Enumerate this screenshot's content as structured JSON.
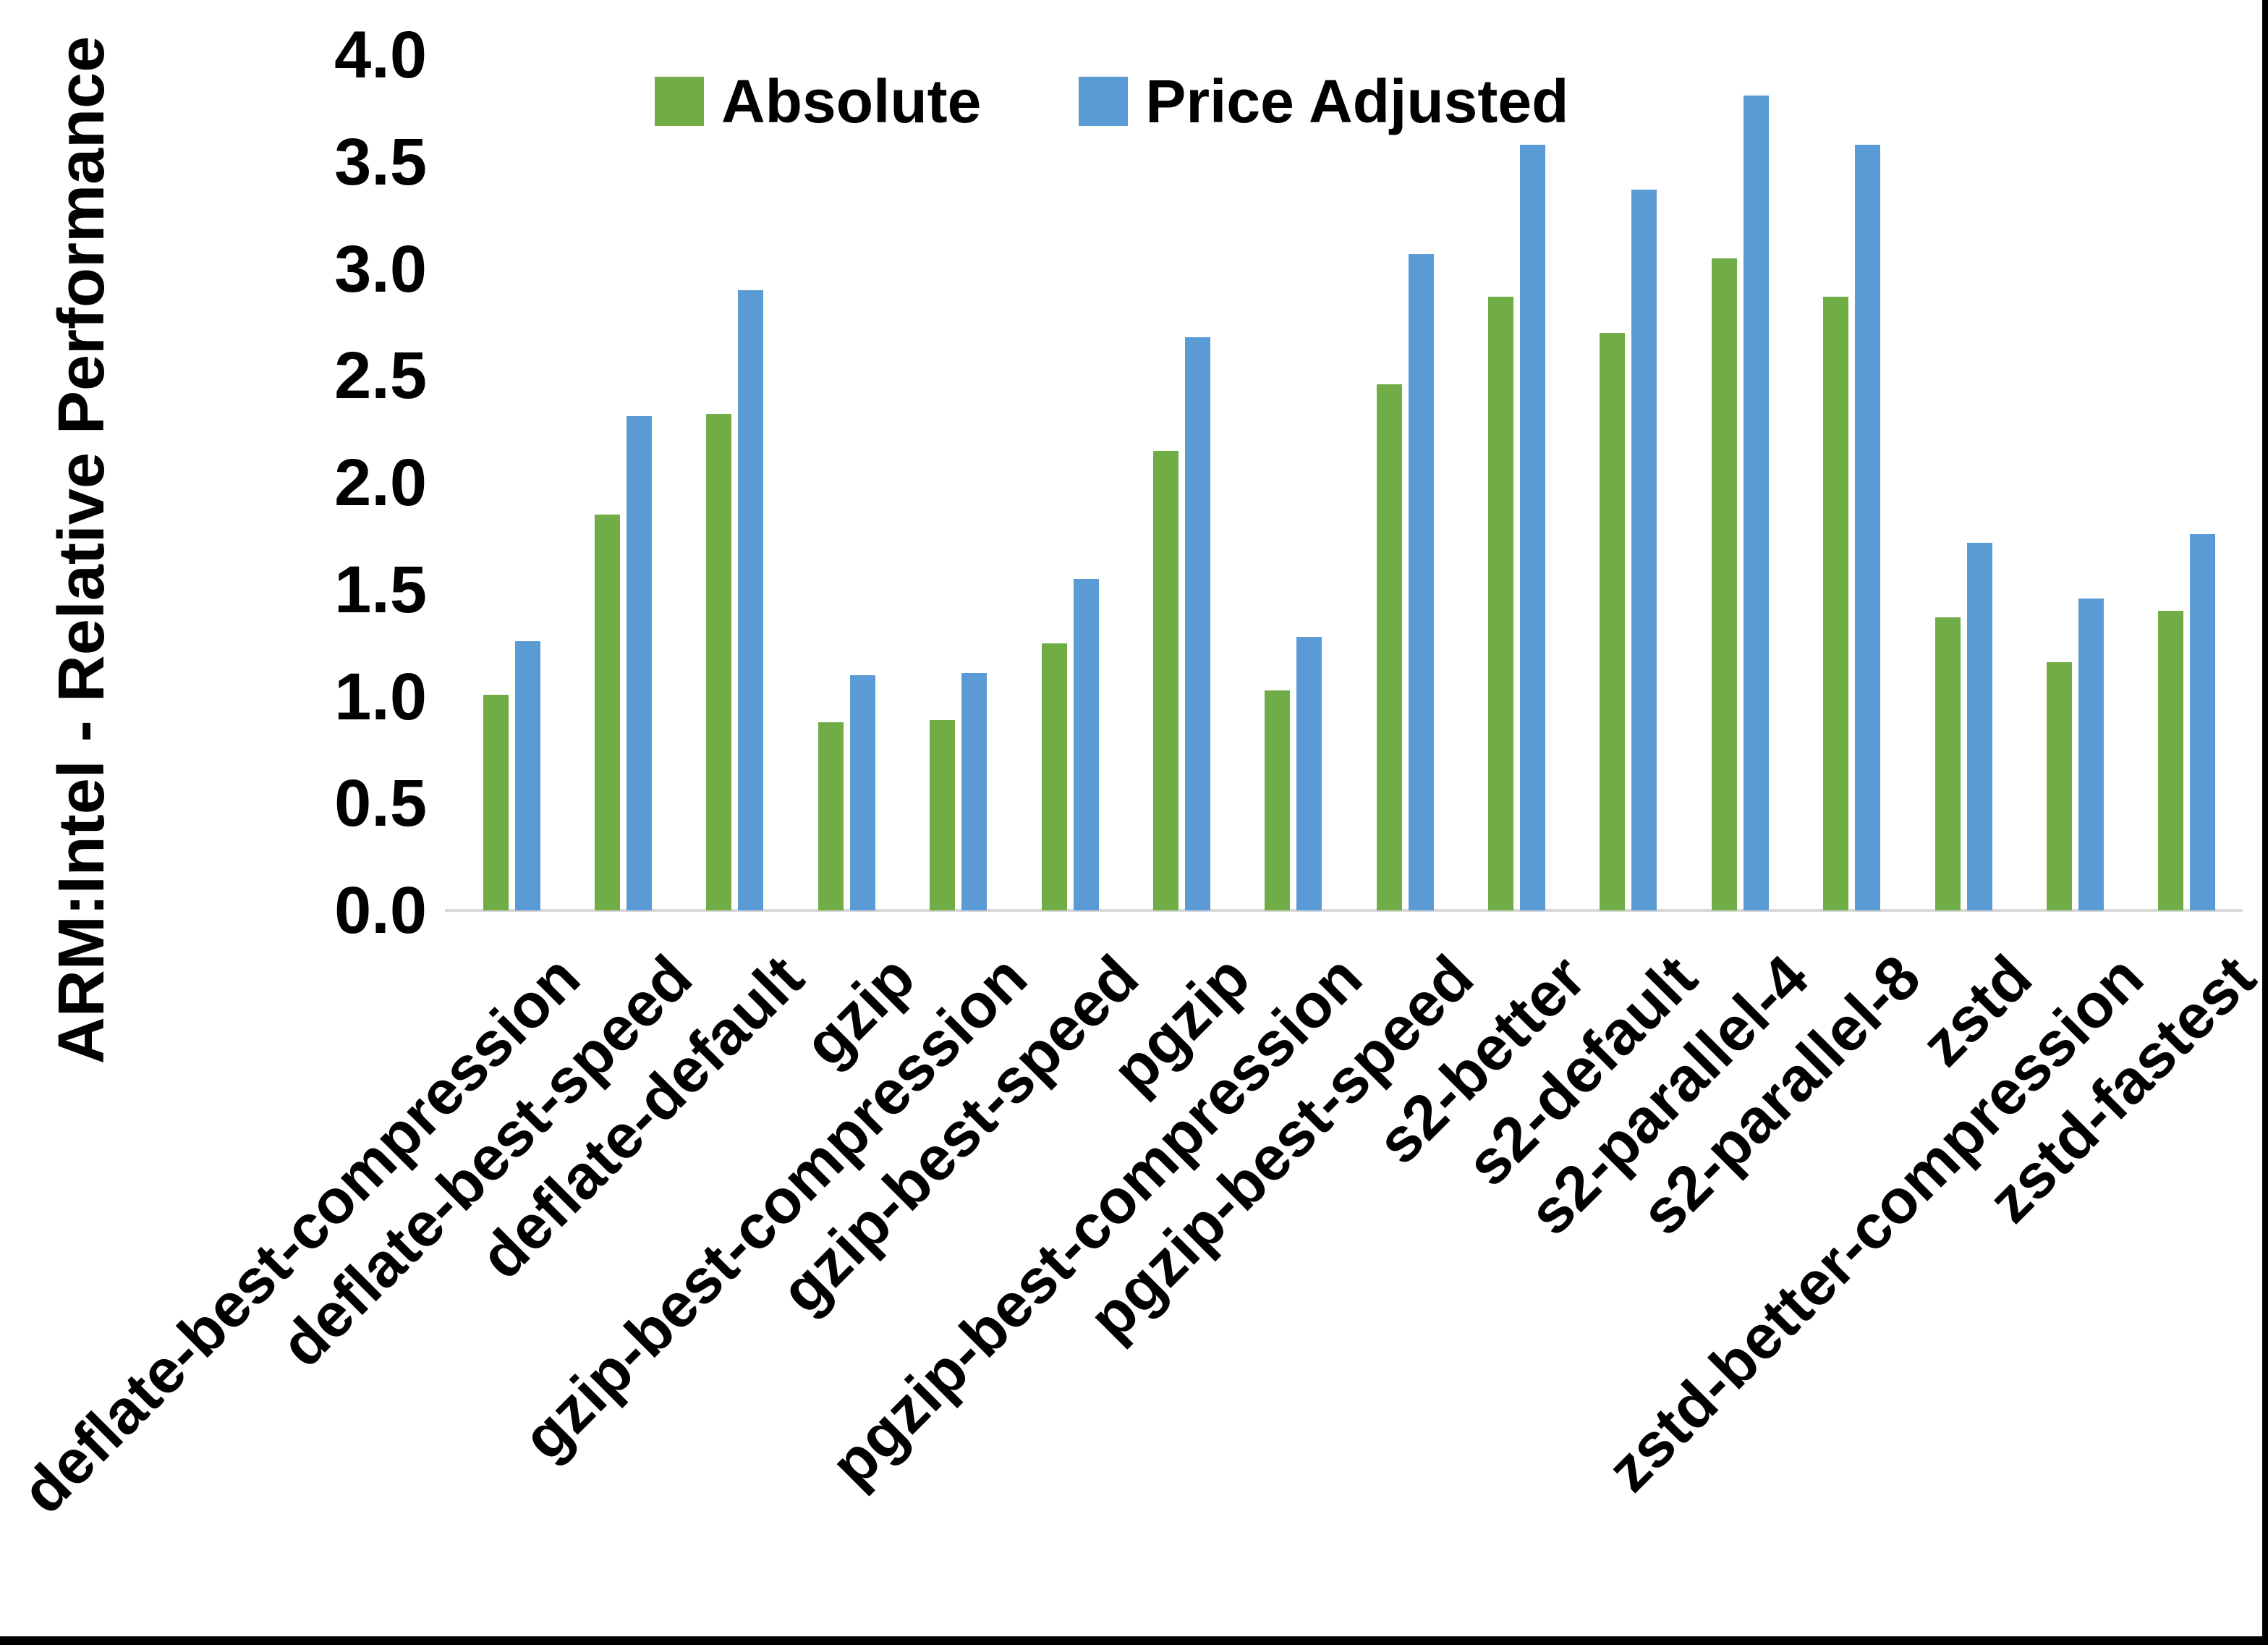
{
  "page": {
    "background": "#ffffff",
    "frame_color": "#000000"
  },
  "axis": {
    "line_color": "#d9d9d9",
    "text_color": "#000000"
  },
  "chart_data": {
    "type": "bar",
    "title": "",
    "xlabel": "",
    "ylabel": "ARM:Intel - Relative Performance",
    "ylim": [
      0.0,
      4.0
    ],
    "ytick_labels": [
      "0.0",
      "0.5",
      "1.0",
      "1.5",
      "2.0",
      "2.5",
      "3.0",
      "3.5",
      "4.0"
    ],
    "grid": false,
    "legend_position": "top",
    "categories": [
      "deflate-best-compression",
      "deflate-best-speed",
      "deflate-default",
      "gzip",
      "gzip-best-compression",
      "gzip-best-speed",
      "pgzip",
      "pgzip-best-compression",
      "pgzip-best-speed",
      "s2-better",
      "s2-default",
      "s2-parallel-4",
      "s2-parallel-8",
      "zstd",
      "zstd-better-compression",
      "zstd-fastest"
    ],
    "series": [
      {
        "name": "Absolute",
        "color": "#70AD47",
        "values": [
          1.01,
          1.85,
          2.32,
          0.88,
          0.89,
          1.25,
          2.15,
          1.03,
          2.46,
          2.87,
          2.7,
          3.05,
          2.87,
          1.37,
          1.16,
          1.4
        ]
      },
      {
        "name": "Price Adjusted",
        "color": "#5B9BD5",
        "values": [
          1.26,
          2.31,
          2.9,
          1.1,
          1.11,
          1.55,
          2.68,
          1.28,
          3.07,
          3.58,
          3.37,
          3.81,
          3.58,
          1.72,
          1.46,
          1.76
        ]
      }
    ]
  }
}
